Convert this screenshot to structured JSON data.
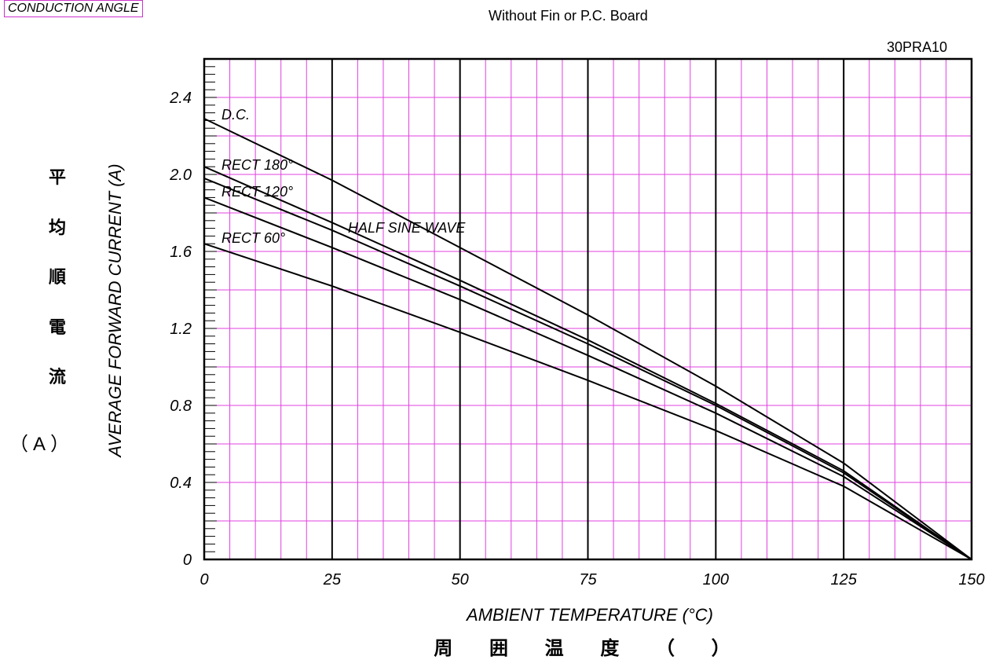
{
  "header": {
    "corner_label": "CONDUCTION ANGLE",
    "subtitle": "Without Fin or P.C. Board",
    "part_number": "30PRA10"
  },
  "axes": {
    "ylabel_en": "AVERAGE FORWARD CURRENT (A)",
    "ylabel_jp_chars": [
      "平",
      "均",
      "順",
      "電",
      "流"
    ],
    "ylabel_jp_unit": "（A）",
    "xlabel_en": "AMBIENT TEMPERATURE (°C)",
    "xlabel_jp": "周 囲 温 度 （ ）"
  },
  "colors": {
    "grid_minor": "#e040e0",
    "grid_major": "#000000",
    "curve": "#000000"
  },
  "chart_data": {
    "type": "line",
    "title": "Without Fin or P.C. Board",
    "xlabel": "AMBIENT TEMPERATURE (°C)",
    "ylabel": "AVERAGE FORWARD CURRENT (A)",
    "xlim": [
      0,
      150
    ],
    "ylim": [
      0,
      2.6
    ],
    "x_ticks": [
      0,
      25,
      50,
      75,
      100,
      125,
      150
    ],
    "y_ticks": [
      0,
      0.4,
      0.8,
      1.2,
      1.6,
      2.0,
      2.4
    ],
    "y_tick_labels": [
      "0",
      "0.4",
      "0.8",
      "1.2",
      "1.6",
      "2.0",
      "2.4"
    ],
    "grid": true,
    "series": [
      {
        "name": "D.C.",
        "x": [
          0,
          25,
          50,
          75,
          100,
          125,
          150
        ],
        "y": [
          2.29,
          1.97,
          1.62,
          1.27,
          0.9,
          0.5,
          0.0
        ]
      },
      {
        "name": "RECT 180°",
        "x": [
          0,
          25,
          50,
          75,
          100,
          125,
          150
        ],
        "y": [
          2.04,
          1.75,
          1.45,
          1.14,
          0.81,
          0.46,
          0.0
        ]
      },
      {
        "name": "HALF SINE WAVE",
        "x": [
          0,
          25,
          50,
          75,
          100,
          125,
          150
        ],
        "y": [
          1.98,
          1.71,
          1.42,
          1.12,
          0.8,
          0.45,
          0.0
        ]
      },
      {
        "name": "RECT 120°",
        "x": [
          0,
          25,
          50,
          75,
          100,
          125,
          150
        ],
        "y": [
          1.88,
          1.62,
          1.35,
          1.06,
          0.76,
          0.43,
          0.0
        ]
      },
      {
        "name": "RECT 60°",
        "x": [
          0,
          25,
          50,
          75,
          100,
          125,
          150
        ],
        "y": [
          1.64,
          1.42,
          1.18,
          0.93,
          0.67,
          0.38,
          0.0
        ]
      }
    ]
  }
}
